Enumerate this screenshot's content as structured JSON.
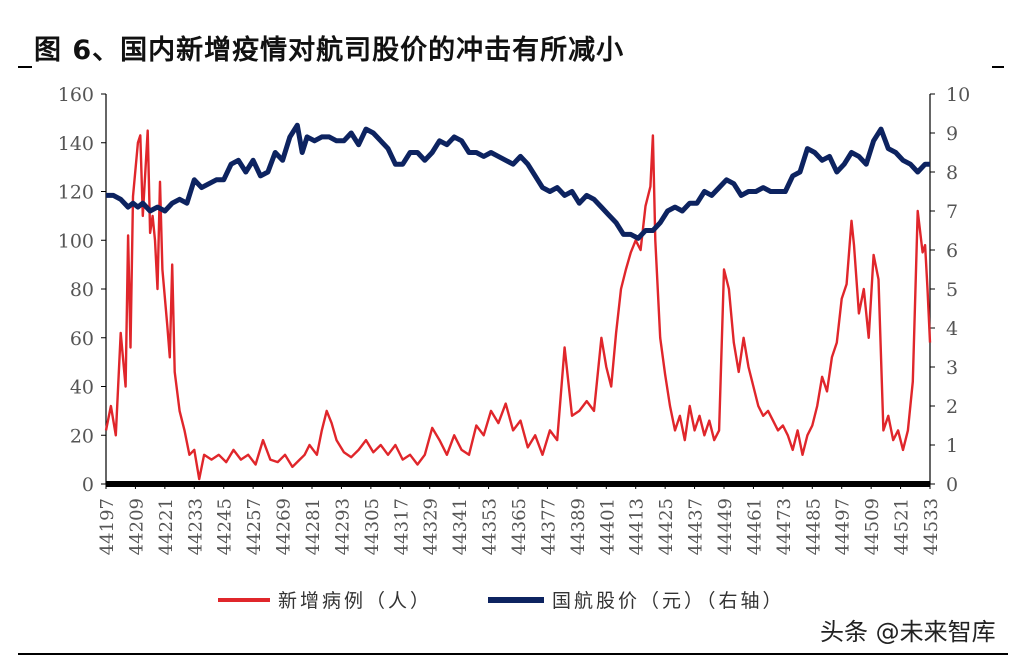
{
  "title": "图 6、国内新增疫情对航司股价的冲击有所减小",
  "watermark": "头条 @未来智库",
  "chart_data": {
    "type": "line",
    "title": "图 6、国内新增疫情对航司股价的冲击有所减小",
    "xlabel": "",
    "ylabel": "",
    "xlim": [
      44197,
      44533
    ],
    "x_ticks": [
      44197,
      44209,
      44221,
      44233,
      44245,
      44257,
      44269,
      44281,
      44293,
      44305,
      44317,
      44329,
      44341,
      44353,
      44365,
      44377,
      44389,
      44401,
      44413,
      44425,
      44437,
      44449,
      44461,
      44473,
      44485,
      44497,
      44509,
      44521,
      44533
    ],
    "ylim_left": [
      0,
      160
    ],
    "y_ticks_left": [
      0,
      20,
      40,
      60,
      80,
      100,
      120,
      140,
      160
    ],
    "ylim_right": [
      0,
      10
    ],
    "y_ticks_right": [
      0,
      1,
      2,
      3,
      4,
      5,
      6,
      7,
      8,
      9,
      10
    ],
    "grid": false,
    "legend_position": "bottom",
    "series": [
      {
        "name": "新增病例（人）",
        "axis": "left",
        "color": "#e0262b",
        "points": [
          [
            44197,
            22
          ],
          [
            44199,
            32
          ],
          [
            44201,
            20
          ],
          [
            44203,
            62
          ],
          [
            44205,
            40
          ],
          [
            44206,
            102
          ],
          [
            44207,
            56
          ],
          [
            44208,
            118
          ],
          [
            44210,
            140
          ],
          [
            44211,
            143
          ],
          [
            44212,
            110
          ],
          [
            44214,
            145
          ],
          [
            44215,
            103
          ],
          [
            44216,
            110
          ],
          [
            44217,
            100
          ],
          [
            44218,
            80
          ],
          [
            44219,
            124
          ],
          [
            44220,
            88
          ],
          [
            44222,
            65
          ],
          [
            44223,
            52
          ],
          [
            44224,
            90
          ],
          [
            44225,
            46
          ],
          [
            44227,
            30
          ],
          [
            44229,
            22
          ],
          [
            44231,
            12
          ],
          [
            44233,
            14
          ],
          [
            44235,
            2
          ],
          [
            44237,
            12
          ],
          [
            44240,
            10
          ],
          [
            44243,
            12
          ],
          [
            44246,
            9
          ],
          [
            44249,
            14
          ],
          [
            44252,
            10
          ],
          [
            44255,
            12
          ],
          [
            44258,
            8
          ],
          [
            44261,
            18
          ],
          [
            44264,
            10
          ],
          [
            44267,
            9
          ],
          [
            44270,
            12
          ],
          [
            44273,
            7
          ],
          [
            44276,
            10
          ],
          [
            44278,
            12
          ],
          [
            44280,
            16
          ],
          [
            44283,
            12
          ],
          [
            44285,
            22
          ],
          [
            44287,
            30
          ],
          [
            44289,
            25
          ],
          [
            44291,
            18
          ],
          [
            44294,
            13
          ],
          [
            44297,
            11
          ],
          [
            44300,
            14
          ],
          [
            44303,
            18
          ],
          [
            44306,
            13
          ],
          [
            44309,
            16
          ],
          [
            44312,
            12
          ],
          [
            44315,
            16
          ],
          [
            44318,
            10
          ],
          [
            44321,
            12
          ],
          [
            44324,
            8
          ],
          [
            44327,
            12
          ],
          [
            44330,
            23
          ],
          [
            44333,
            18
          ],
          [
            44336,
            12
          ],
          [
            44339,
            20
          ],
          [
            44342,
            14
          ],
          [
            44345,
            12
          ],
          [
            44348,
            24
          ],
          [
            44351,
            20
          ],
          [
            44354,
            30
          ],
          [
            44357,
            25
          ],
          [
            44360,
            33
          ],
          [
            44363,
            22
          ],
          [
            44366,
            26
          ],
          [
            44369,
            15
          ],
          [
            44372,
            20
          ],
          [
            44375,
            12
          ],
          [
            44378,
            22
          ],
          [
            44381,
            18
          ],
          [
            44384,
            56
          ],
          [
            44387,
            28
          ],
          [
            44390,
            30
          ],
          [
            44393,
            34
          ],
          [
            44396,
            30
          ],
          [
            44399,
            60
          ],
          [
            44401,
            48
          ],
          [
            44403,
            40
          ],
          [
            44405,
            62
          ],
          [
            44407,
            80
          ],
          [
            44409,
            88
          ],
          [
            44411,
            95
          ],
          [
            44413,
            100
          ],
          [
            44415,
            96
          ],
          [
            44417,
            114
          ],
          [
            44419,
            122
          ],
          [
            44420,
            143
          ],
          [
            44421,
            100
          ],
          [
            44423,
            60
          ],
          [
            44425,
            45
          ],
          [
            44427,
            32
          ],
          [
            44429,
            22
          ],
          [
            44431,
            28
          ],
          [
            44433,
            18
          ],
          [
            44435,
            32
          ],
          [
            44437,
            22
          ],
          [
            44439,
            28
          ],
          [
            44441,
            20
          ],
          [
            44443,
            26
          ],
          [
            44445,
            18
          ],
          [
            44447,
            22
          ],
          [
            44449,
            88
          ],
          [
            44451,
            80
          ],
          [
            44453,
            58
          ],
          [
            44455,
            46
          ],
          [
            44457,
            60
          ],
          [
            44459,
            48
          ],
          [
            44461,
            40
          ],
          [
            44463,
            32
          ],
          [
            44465,
            28
          ],
          [
            44467,
            30
          ],
          [
            44469,
            26
          ],
          [
            44471,
            22
          ],
          [
            44473,
            24
          ],
          [
            44475,
            20
          ],
          [
            44477,
            14
          ],
          [
            44479,
            22
          ],
          [
            44481,
            12
          ],
          [
            44483,
            20
          ],
          [
            44485,
            24
          ],
          [
            44487,
            32
          ],
          [
            44489,
            44
          ],
          [
            44491,
            38
          ],
          [
            44493,
            52
          ],
          [
            44495,
            58
          ],
          [
            44497,
            76
          ],
          [
            44499,
            82
          ],
          [
            44501,
            108
          ],
          [
            44502,
            98
          ],
          [
            44504,
            70
          ],
          [
            44506,
            80
          ],
          [
            44508,
            60
          ],
          [
            44510,
            94
          ],
          [
            44512,
            84
          ],
          [
            44514,
            22
          ],
          [
            44516,
            28
          ],
          [
            44518,
            18
          ],
          [
            44520,
            22
          ],
          [
            44522,
            14
          ],
          [
            44524,
            22
          ],
          [
            44526,
            42
          ],
          [
            44528,
            112
          ],
          [
            44530,
            95
          ],
          [
            44531,
            98
          ],
          [
            44532,
            80
          ],
          [
            44533,
            58
          ]
        ]
      },
      {
        "name": "国航股价（元）（右轴）",
        "axis": "right",
        "color": "#0d2360",
        "points": [
          [
            44197,
            7.4
          ],
          [
            44200,
            7.4
          ],
          [
            44203,
            7.3
          ],
          [
            44206,
            7.1
          ],
          [
            44208,
            7.2
          ],
          [
            44210,
            7.1
          ],
          [
            44212,
            7.2
          ],
          [
            44215,
            7.0
          ],
          [
            44218,
            7.1
          ],
          [
            44221,
            7.0
          ],
          [
            44224,
            7.2
          ],
          [
            44227,
            7.3
          ],
          [
            44230,
            7.2
          ],
          [
            44233,
            7.8
          ],
          [
            44236,
            7.6
          ],
          [
            44239,
            7.7
          ],
          [
            44242,
            7.8
          ],
          [
            44245,
            7.8
          ],
          [
            44248,
            8.2
          ],
          [
            44251,
            8.3
          ],
          [
            44254,
            8.0
          ],
          [
            44257,
            8.3
          ],
          [
            44260,
            7.9
          ],
          [
            44263,
            8.0
          ],
          [
            44266,
            8.5
          ],
          [
            44269,
            8.3
          ],
          [
            44272,
            8.9
          ],
          [
            44275,
            9.2
          ],
          [
            44277,
            8.5
          ],
          [
            44279,
            8.9
          ],
          [
            44282,
            8.8
          ],
          [
            44285,
            8.9
          ],
          [
            44288,
            8.9
          ],
          [
            44291,
            8.8
          ],
          [
            44294,
            8.8
          ],
          [
            44297,
            9.0
          ],
          [
            44300,
            8.7
          ],
          [
            44303,
            9.1
          ],
          [
            44306,
            9.0
          ],
          [
            44309,
            8.8
          ],
          [
            44312,
            8.6
          ],
          [
            44315,
            8.2
          ],
          [
            44318,
            8.2
          ],
          [
            44321,
            8.5
          ],
          [
            44324,
            8.5
          ],
          [
            44327,
            8.3
          ],
          [
            44330,
            8.5
          ],
          [
            44333,
            8.8
          ],
          [
            44336,
            8.7
          ],
          [
            44339,
            8.9
          ],
          [
            44342,
            8.8
          ],
          [
            44345,
            8.5
          ],
          [
            44348,
            8.5
          ],
          [
            44351,
            8.4
          ],
          [
            44354,
            8.5
          ],
          [
            44357,
            8.4
          ],
          [
            44360,
            8.3
          ],
          [
            44363,
            8.2
          ],
          [
            44366,
            8.4
          ],
          [
            44369,
            8.2
          ],
          [
            44372,
            7.9
          ],
          [
            44375,
            7.6
          ],
          [
            44378,
            7.5
          ],
          [
            44381,
            7.6
          ],
          [
            44384,
            7.4
          ],
          [
            44387,
            7.5
          ],
          [
            44390,
            7.2
          ],
          [
            44393,
            7.4
          ],
          [
            44396,
            7.3
          ],
          [
            44399,
            7.1
          ],
          [
            44402,
            6.9
          ],
          [
            44405,
            6.7
          ],
          [
            44408,
            6.4
          ],
          [
            44411,
            6.4
          ],
          [
            44414,
            6.3
          ],
          [
            44417,
            6.5
          ],
          [
            44420,
            6.5
          ],
          [
            44423,
            6.7
          ],
          [
            44426,
            7.0
          ],
          [
            44429,
            7.1
          ],
          [
            44432,
            7.0
          ],
          [
            44435,
            7.2
          ],
          [
            44438,
            7.2
          ],
          [
            44441,
            7.5
          ],
          [
            44444,
            7.4
          ],
          [
            44447,
            7.6
          ],
          [
            44450,
            7.8
          ],
          [
            44453,
            7.7
          ],
          [
            44456,
            7.4
          ],
          [
            44459,
            7.5
          ],
          [
            44462,
            7.5
          ],
          [
            44465,
            7.6
          ],
          [
            44468,
            7.5
          ],
          [
            44471,
            7.5
          ],
          [
            44474,
            7.5
          ],
          [
            44477,
            7.9
          ],
          [
            44480,
            8.0
          ],
          [
            44483,
            8.6
          ],
          [
            44486,
            8.5
          ],
          [
            44489,
            8.3
          ],
          [
            44492,
            8.4
          ],
          [
            44495,
            8.0
          ],
          [
            44498,
            8.2
          ],
          [
            44501,
            8.5
          ],
          [
            44504,
            8.4
          ],
          [
            44507,
            8.2
          ],
          [
            44510,
            8.8
          ],
          [
            44513,
            9.1
          ],
          [
            44516,
            8.6
          ],
          [
            44519,
            8.5
          ],
          [
            44522,
            8.3
          ],
          [
            44525,
            8.2
          ],
          [
            44528,
            8.0
          ],
          [
            44531,
            8.2
          ],
          [
            44533,
            8.2
          ]
        ]
      }
    ]
  }
}
